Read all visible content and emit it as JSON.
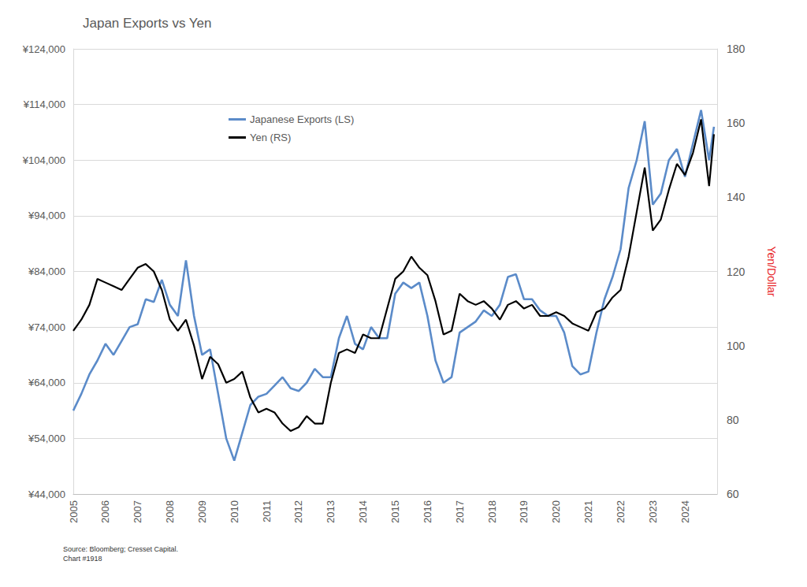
{
  "chart_data": {
    "type": "line",
    "title": "Japan Exports vs Yen",
    "y2label": "Yen/Dollar",
    "source": "Source: Bloomberg; Cresset Capital.",
    "chart_number": "Chart #1918",
    "grid": true,
    "legend": "upper left",
    "x": [
      2005,
      2005.25,
      2005.5,
      2005.75,
      2006,
      2006.25,
      2006.5,
      2006.75,
      2007,
      2007.25,
      2007.5,
      2007.75,
      2008,
      2008.25,
      2008.5,
      2008.75,
      2009,
      2009.25,
      2009.5,
      2009.75,
      2010,
      2010.25,
      2010.5,
      2010.75,
      2011,
      2011.25,
      2011.5,
      2011.75,
      2012,
      2012.25,
      2012.5,
      2012.75,
      2013,
      2013.25,
      2013.5,
      2013.75,
      2014,
      2014.25,
      2014.5,
      2014.75,
      2015,
      2015.25,
      2015.5,
      2015.75,
      2016,
      2016.25,
      2016.5,
      2016.75,
      2017,
      2017.25,
      2017.5,
      2017.75,
      2018,
      2018.25,
      2018.5,
      2018.75,
      2019,
      2019.25,
      2019.5,
      2019.75,
      2020,
      2020.25,
      2020.5,
      2020.75,
      2021,
      2021.25,
      2021.5,
      2021.75,
      2022,
      2022.25,
      2022.5,
      2022.75,
      2023,
      2023.25,
      2023.5,
      2023.75,
      2024,
      2024.25,
      2024.5,
      2024.75,
      2024.9
    ],
    "xlim": [
      2005,
      2025
    ],
    "xticks": [
      2005,
      2006,
      2007,
      2008,
      2009,
      2010,
      2011,
      2012,
      2013,
      2014,
      2015,
      2016,
      2017,
      2018,
      2019,
      2020,
      2021,
      2022,
      2023,
      2024
    ],
    "ylim": [
      44000,
      124000
    ],
    "yticks": [
      {
        "value": 44000,
        "label": "¥44,000"
      },
      {
        "value": 54000,
        "label": "¥54,000"
      },
      {
        "value": 64000,
        "label": "¥64,000"
      },
      {
        "value": 74000,
        "label": "¥74,000"
      },
      {
        "value": 84000,
        "label": "¥84,000"
      },
      {
        "value": 94000,
        "label": "¥94,000"
      },
      {
        "value": 104000,
        "label": "¥104,000"
      },
      {
        "value": 114000,
        "label": "¥114,000"
      },
      {
        "value": 124000,
        "label": "¥124,000"
      }
    ],
    "y2lim": [
      60,
      180
    ],
    "y2ticks": [
      60,
      80,
      100,
      120,
      140,
      160,
      180
    ],
    "series": [
      {
        "name": "Japanese Exports (LS)",
        "color": "#5b8bc9",
        "values": [
          59000,
          62000,
          65500,
          68000,
          71000,
          69000,
          71500,
          74000,
          74500,
          79000,
          78500,
          82500,
          78000,
          76000,
          86000,
          76000,
          69000,
          70000,
          62000,
          54000,
          50000,
          55000,
          60000,
          61500,
          62000,
          63500,
          65000,
          63000,
          62500,
          64000,
          66500,
          65000,
          65000,
          72000,
          76000,
          71000,
          70000,
          74000,
          72000,
          72000,
          80000,
          82000,
          81000,
          82000,
          76000,
          68000,
          64000,
          65000,
          73000,
          74000,
          75000,
          77000,
          76000,
          78000,
          83000,
          83500,
          79000,
          79000,
          77000,
          76000,
          76000,
          73000,
          67000,
          65500,
          66000,
          73000,
          79000,
          83000,
          88000,
          99000,
          104000,
          111000,
          96000,
          98000,
          104000,
          106000,
          101000,
          107000,
          113000,
          104000,
          110000
        ]
      },
      {
        "name": "Yen (RS)",
        "color": "#000000",
        "axis": "y2",
        "values": [
          104,
          107,
          111,
          118,
          117,
          116,
          115,
          118,
          121,
          122,
          120,
          115,
          107,
          104,
          107,
          100,
          91,
          97,
          95,
          90,
          91,
          93,
          86,
          82,
          83,
          82,
          79,
          77,
          78,
          81,
          79,
          79,
          90,
          98,
          99,
          98,
          103,
          102,
          102,
          110,
          118,
          120,
          124,
          121,
          119,
          112,
          103,
          104,
          114,
          112,
          111,
          112,
          110,
          107,
          111,
          112,
          110,
          111,
          108,
          108,
          109,
          108,
          106,
          105,
          104,
          109,
          110,
          113,
          115,
          124,
          136,
          148,
          131,
          134,
          142,
          149,
          146,
          152,
          161,
          143,
          157
        ]
      }
    ]
  }
}
